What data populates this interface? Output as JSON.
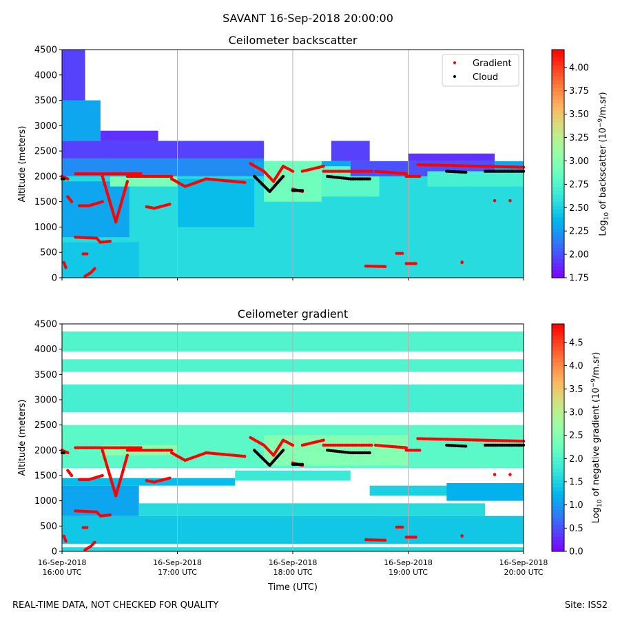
{
  "figure": {
    "title": "SAVANT 16-Sep-2018 20:00:00",
    "footer_left": "REAL-TIME DATA, NOT CHECKED FOR QUALITY",
    "footer_right": "Site: ISS2"
  },
  "colors": {
    "gradient": "#ff0000",
    "cloud": "#000000",
    "grid": "#b0b0b0",
    "colormap": "rainbow"
  },
  "chart_data": [
    {
      "type": "heatmap",
      "title": "Ceilometer backscatter",
      "ylabel": "Altitude (meters)",
      "xlim": [
        "16:00",
        "20:00"
      ],
      "ylim": [
        0,
        4500
      ],
      "yticks": [
        "0",
        "500",
        "1000",
        "1500",
        "2000",
        "2500",
        "3000",
        "3500",
        "4000",
        "4500"
      ],
      "grid": "vertical at hour ticks",
      "legend": {
        "placement": "top-right",
        "entries": [
          "Gradient",
          "Cloud"
        ]
      },
      "colorbar": {
        "label": {
          "pre": "Log",
          "sub": "10",
          "mid": " of backscatter (10",
          "sup": "−9",
          "post": "/m.sr)"
        },
        "range": [
          1.75,
          4.19
        ],
        "ticks": [
          "1.75",
          "2.00",
          "2.25",
          "2.50",
          "2.75",
          "3.00",
          "3.25",
          "3.50",
          "3.75",
          "4.00"
        ]
      },
      "cells": [
        [
          "16:00",
          "20:00",
          0,
          2000,
          2.55
        ],
        [
          "16:00",
          "16:40",
          0,
          700,
          2.45
        ],
        [
          "16:00",
          "16:35",
          800,
          1900,
          2.3
        ],
        [
          "17:00",
          "17:40",
          1000,
          1950,
          2.4
        ],
        [
          "16:25",
          "17:00",
          1800,
          2000,
          2.95
        ],
        [
          "16:00",
          "17:45",
          2000,
          2350,
          2.2
        ],
        [
          "16:00",
          "17:45",
          2350,
          2700,
          1.95
        ],
        [
          "16:00",
          "16:20",
          2700,
          3500,
          2.3
        ],
        [
          "16:00",
          "16:12",
          3500,
          4500,
          1.95
        ],
        [
          "16:20",
          "16:50",
          2700,
          2900,
          1.9
        ],
        [
          "17:40",
          "18:30",
          2100,
          2300,
          2.3
        ],
        [
          "17:45",
          "18:15",
          1500,
          2300,
          2.9
        ],
        [
          "18:15",
          "18:45",
          1600,
          2200,
          2.8
        ],
        [
          "18:20",
          "18:40",
          2300,
          2700,
          1.95
        ],
        [
          "18:30",
          "19:45",
          2000,
          2300,
          2.0
        ],
        [
          "19:00",
          "19:45",
          2300,
          2450,
          1.9
        ],
        [
          "19:10",
          "20:00",
          1800,
          2100,
          2.7
        ],
        [
          "19:45",
          "20:00",
          2100,
          2300,
          2.3
        ]
      ]
    },
    {
      "type": "heatmap",
      "title": "Ceilometer gradient",
      "ylabel": "Altitude (meters)",
      "xlabel": "Time (UTC)",
      "xlim": [
        "16:00",
        "20:00"
      ],
      "ylim": [
        0,
        4500
      ],
      "yticks": [
        "0",
        "500",
        "1000",
        "1500",
        "2000",
        "2500",
        "3000",
        "3500",
        "4000",
        "4500"
      ],
      "xticks": [
        {
          "date": "16-Sep-2018",
          "time": "16:00 UTC"
        },
        {
          "date": "16-Sep-2018",
          "time": "17:00 UTC"
        },
        {
          "date": "16-Sep-2018",
          "time": "18:00 UTC"
        },
        {
          "date": "16-Sep-2018",
          "time": "19:00 UTC"
        },
        {
          "date": "16-Sep-2018",
          "time": "20:00 UTC"
        }
      ],
      "grid": "vertical at hour ticks",
      "colorbar": {
        "label": {
          "pre": "Log",
          "sub": "10",
          "mid": " of negative gradient (10",
          "sup": "−9",
          "post": "/m.sr)"
        },
        "range": [
          0,
          4.9
        ],
        "ticks": [
          "0.0",
          "0.5",
          "1.0",
          "1.5",
          "2.0",
          "2.5",
          "3.0",
          "3.5",
          "4.0",
          "4.5"
        ]
      },
      "cells": [
        [
          "16:00",
          "20:00",
          0,
          80,
          1.6
        ],
        [
          "16:00",
          "20:00",
          150,
          700,
          1.4
        ],
        [
          "16:00",
          "16:40",
          700,
          1300,
          1.1
        ],
        [
          "16:40",
          "19:40",
          700,
          950,
          1.6
        ],
        [
          "16:00",
          "17:30",
          1300,
          1450,
          1.3
        ],
        [
          "17:30",
          "18:30",
          1400,
          1600,
          1.8
        ],
        [
          "18:40",
          "19:40",
          1100,
          1300,
          1.5
        ],
        [
          "19:20",
          "20:00",
          1000,
          1350,
          1.2
        ],
        [
          "16:00",
          "20:00",
          1650,
          2500,
          2.1
        ],
        [
          "16:20",
          "17:00",
          1900,
          2100,
          2.6
        ],
        [
          "17:45",
          "19:00",
          1700,
          2300,
          2.5
        ],
        [
          "16:00",
          "20:00",
          2750,
          3300,
          1.9
        ],
        [
          "16:00",
          "20:00",
          3550,
          3800,
          2.0
        ],
        [
          "16:00",
          "20:00",
          3950,
          4350,
          2.0
        ]
      ]
    }
  ],
  "overlays": {
    "gradient_traces": [
      [
        [
          "16:00",
          2000
        ],
        [
          "16:03",
          1950
        ]
      ],
      [
        [
          "16:01",
          300
        ],
        [
          "16:02",
          200
        ]
      ],
      [
        [
          "16:03",
          1600
        ],
        [
          "16:05",
          1500
        ]
      ],
      [
        [
          "16:07",
          2050
        ],
        [
          "16:41",
          2050
        ]
      ],
      [
        [
          "16:07",
          800
        ],
        [
          "16:18",
          780
        ],
        [
          "16:20",
          700
        ],
        [
          "16:25",
          720
        ]
      ],
      [
        [
          "16:09",
          1420
        ],
        [
          "16:14",
          1420
        ],
        [
          "16:21",
          1500
        ]
      ],
      [
        [
          "16:21",
          2000
        ],
        [
          "16:28",
          1100
        ],
        [
          "16:34",
          1900
        ]
      ],
      [
        [
          "16:11",
          470
        ],
        [
          "16:13",
          470
        ]
      ],
      [
        [
          "16:12",
          30
        ],
        [
          "16:15",
          100
        ],
        [
          "16:17",
          180
        ]
      ],
      [
        [
          "16:34",
          2000
        ],
        [
          "16:57",
          2000
        ]
      ],
      [
        [
          "16:44",
          1400
        ],
        [
          "16:48",
          1370
        ],
        [
          "16:56",
          1450
        ]
      ],
      [
        [
          "16:57",
          1950
        ],
        [
          "17:04",
          1800
        ],
        [
          "17:15",
          1950
        ],
        [
          "17:35",
          1880
        ]
      ],
      [
        [
          "17:38",
          2250
        ],
        [
          "17:45",
          2100
        ],
        [
          "17:50",
          1900
        ],
        [
          "17:55",
          2200
        ],
        [
          "18:00",
          2100
        ]
      ],
      [
        [
          "18:00",
          1750
        ],
        [
          "18:05",
          1700
        ]
      ],
      [
        [
          "18:05",
          2100
        ],
        [
          "18:16",
          2200
        ]
      ],
      [
        [
          "18:16",
          2100
        ],
        [
          "18:41",
          2100
        ]
      ],
      [
        [
          "18:43",
          2100
        ],
        [
          "18:59",
          2050
        ]
      ],
      [
        [
          "18:59",
          2000
        ],
        [
          "19:06",
          2000
        ]
      ],
      [
        [
          "19:05",
          2230
        ],
        [
          "20:00",
          2180
        ]
      ],
      [
        [
          "18:38",
          230
        ],
        [
          "18:48",
          220
        ]
      ],
      [
        [
          "18:54",
          480
        ],
        [
          "18:57",
          480
        ]
      ],
      [
        [
          "18:59",
          280
        ],
        [
          "19:04",
          280
        ]
      ],
      [
        [
          "19:28",
          300
        ],
        [
          "19:28",
          310
        ]
      ],
      [
        [
          "19:45",
          1520
        ],
        [
          "19:45",
          1520
        ]
      ],
      [
        [
          "19:53",
          1520
        ],
        [
          "19:53",
          1520
        ]
      ]
    ],
    "cloud_traces": [
      [
        [
          "16:00",
          1950
        ],
        [
          "16:01",
          1950
        ]
      ],
      [
        [
          "17:40",
          2000
        ],
        [
          "17:48",
          1700
        ],
        [
          "17:55",
          2000
        ]
      ],
      [
        [
          "18:00",
          1720
        ],
        [
          "18:05",
          1720
        ]
      ],
      [
        [
          "18:18",
          2000
        ],
        [
          "18:30",
          1950
        ],
        [
          "18:40",
          1950
        ]
      ],
      [
        [
          "19:20",
          2100
        ],
        [
          "19:30",
          2080
        ]
      ],
      [
        [
          "19:40",
          2100
        ],
        [
          "20:00",
          2100
        ]
      ]
    ]
  }
}
